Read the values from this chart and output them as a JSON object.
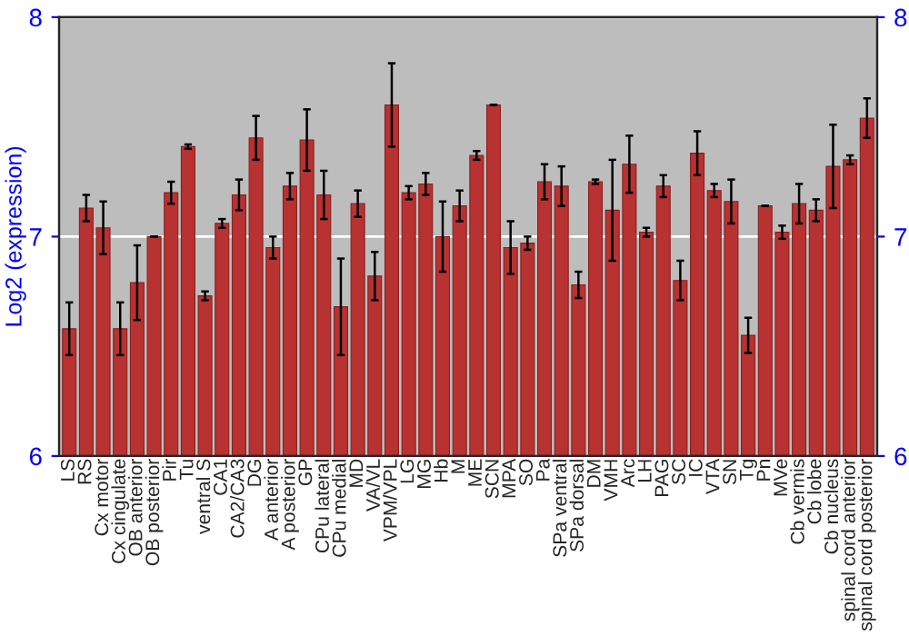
{
  "chart_data": {
    "type": "bar",
    "ylabel": "Log2 (expression)",
    "categories": [
      "LS",
      "RS",
      "Cx motor",
      "Cx cingulate",
      "OB anterior",
      "OB posterior",
      "Pir",
      "Tu",
      "ventral S",
      "CA1",
      "CA2/CA3",
      "DG",
      "A anterior",
      "A posterior",
      "GP",
      "CPu lateral",
      "CPu medial",
      "MD",
      "VA/VL",
      "VPM/VPL",
      "LG",
      "MG",
      "Hb",
      "M",
      "ME",
      "SCN",
      "MPA",
      "SO",
      "Pa",
      "SPa ventral",
      "SPa dorsal",
      "DM",
      "VMH",
      "Arc",
      "LH",
      "PAG",
      "SC",
      "IC",
      "VTA",
      "SN",
      "Tg",
      "Pn",
      "MVe",
      "Cb vermis",
      "Cb lobe",
      "Cb nucleus",
      "spinal cord anterior",
      "spinal cord posterior"
    ],
    "values": [
      6.58,
      7.13,
      7.04,
      6.58,
      6.79,
      7.0,
      7.2,
      7.41,
      6.73,
      7.06,
      7.19,
      7.45,
      6.95,
      7.23,
      7.44,
      7.19,
      6.68,
      7.15,
      6.82,
      7.6,
      7.2,
      7.24,
      7.0,
      7.14,
      7.37,
      7.6,
      6.95,
      6.97,
      7.25,
      7.23,
      6.78,
      7.25,
      7.12,
      7.33,
      7.02,
      7.23,
      6.8,
      7.38,
      7.21,
      7.16,
      6.55,
      7.14,
      7.02,
      7.15,
      7.12,
      7.32,
      7.35,
      7.54
    ],
    "errors": [
      0.12,
      0.06,
      0.12,
      0.12,
      0.17,
      0.0,
      0.05,
      0.01,
      0.02,
      0.02,
      0.07,
      0.1,
      0.05,
      0.06,
      0.14,
      0.11,
      0.22,
      0.06,
      0.11,
      0.19,
      0.03,
      0.05,
      0.16,
      0.07,
      0.02,
      0.0,
      0.12,
      0.03,
      0.08,
      0.09,
      0.06,
      0.01,
      0.23,
      0.13,
      0.02,
      0.05,
      0.09,
      0.1,
      0.03,
      0.1,
      0.08,
      0.0,
      0.03,
      0.09,
      0.05,
      0.19,
      0.02,
      0.09
    ],
    "color": "#b83232",
    "ylim": [
      6,
      8
    ],
    "yticks": [
      6,
      7,
      8
    ],
    "y2lim": [
      6,
      8
    ],
    "y2ticks": [
      6,
      7,
      8
    ],
    "grid": "y"
  }
}
